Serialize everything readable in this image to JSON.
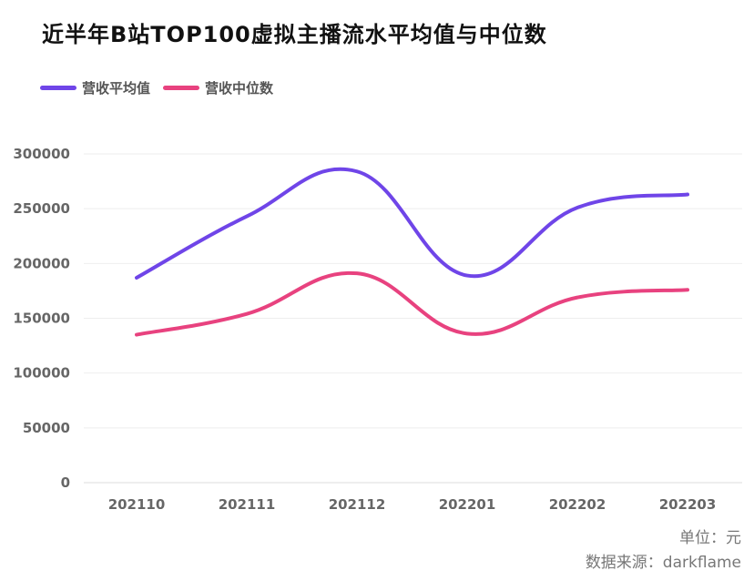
{
  "chart_data": {
    "type": "line",
    "title": "近半年B站TOP100虚拟主播流水平均值与中位数",
    "categories": [
      "202110",
      "202111",
      "202112",
      "202201",
      "202202",
      "202203"
    ],
    "series": [
      {
        "name": "营收平均值",
        "color": "#6f45e8",
        "values": [
          187000,
          243000,
          284000,
          189000,
          251000,
          263000
        ]
      },
      {
        "name": "营收中位数",
        "color": "#e8427f",
        "values": [
          135000,
          154000,
          191000,
          136000,
          169000,
          176000
        ]
      }
    ],
    "y_ticks": [
      "0",
      "50000",
      "100000",
      "150000",
      "200000",
      "250000",
      "300000"
    ],
    "ylim": [
      0,
      300000
    ],
    "grid": true,
    "legend_position": "top-left",
    "unit_note": "单位：元",
    "source_note": "数据来源：darkflame"
  }
}
